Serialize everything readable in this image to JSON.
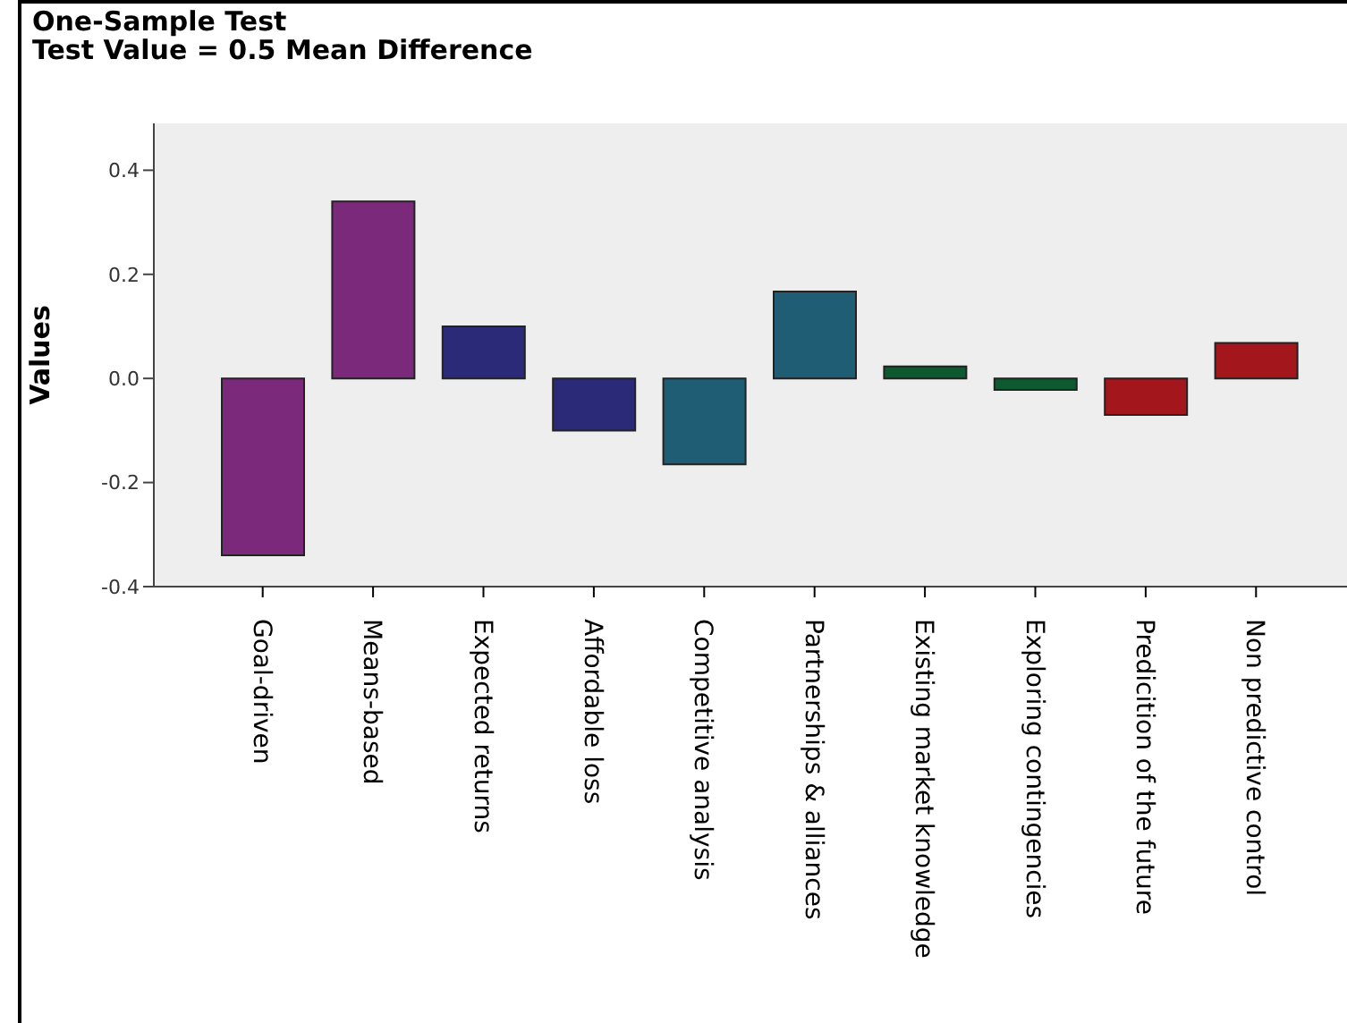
{
  "chart_data": {
    "type": "bar",
    "title": "One-Sample Test",
    "subtitle": "Test Value = 0.5 Mean Difference",
    "ylabel": "Values",
    "categories": [
      "Goal-driven",
      "Means-based",
      "Expected returns",
      "Affordable loss",
      "Competitive analysis",
      "Partnerships & alliances",
      "Existing market knowledge",
      "Exploring contingencies",
      "Predicition of the future",
      "Non predictive control"
    ],
    "values": [
      -0.34,
      0.34,
      0.1,
      -0.1,
      -0.165,
      0.167,
      0.023,
      -0.022,
      -0.07,
      0.068
    ],
    "colors": [
      "#7b2a7b",
      "#7b2a7b",
      "#2a2a78",
      "#2a2a78",
      "#1f5d75",
      "#1f5d75",
      "#0d5a30",
      "#0d5a30",
      "#a3161c",
      "#a3161c"
    ],
    "ylim": [
      -0.4,
      0.49
    ],
    "yticks": [
      {
        "value": -0.4,
        "label": "-0.4"
      },
      {
        "value": -0.2,
        "label": "-0.2"
      },
      {
        "value": 0,
        "label": "0.0"
      },
      {
        "value": 0.2,
        "label": "0.2"
      },
      {
        "value": 0.4,
        "label": "0.4"
      }
    ]
  }
}
